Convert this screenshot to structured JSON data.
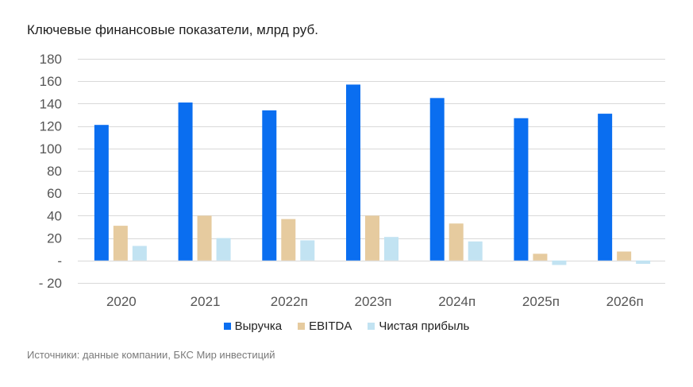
{
  "chart_data": {
    "type": "bar",
    "title": "Ключевые финансовые показатели, млрд руб.",
    "xlabel": "",
    "ylabel": "",
    "ylim": [
      -20,
      180
    ],
    "yticks": [
      -20,
      0,
      20,
      40,
      60,
      80,
      100,
      120,
      140,
      160,
      180
    ],
    "ytick_labels": [
      "- 20",
      "-",
      "20",
      "40",
      "60",
      "80",
      "100",
      "120",
      "140",
      "160",
      "180"
    ],
    "categories": [
      "2020",
      "2021",
      "2022п",
      "2023п",
      "2024п",
      "2025п",
      "2026п"
    ],
    "series": [
      {
        "name": "Выручка",
        "color": "#0a6ef0",
        "values": [
          121,
          141,
          134,
          157,
          145,
          127,
          131
        ]
      },
      {
        "name": "EBITDA",
        "color": "#e6cb9f",
        "values": [
          31,
          40,
          37,
          40,
          33,
          6,
          8
        ]
      },
      {
        "name": "Чистая прибыль",
        "color": "#c2e3f2",
        "values": [
          13,
          20,
          18,
          21,
          17,
          -4,
          -3
        ]
      }
    ],
    "grid": true,
    "legend_position": "bottom"
  },
  "source_note": "Источники: данные компании, БКС Мир инвестиций",
  "colors": {
    "gridline": "#d9d9d9",
    "tick_text": "#555555"
  }
}
